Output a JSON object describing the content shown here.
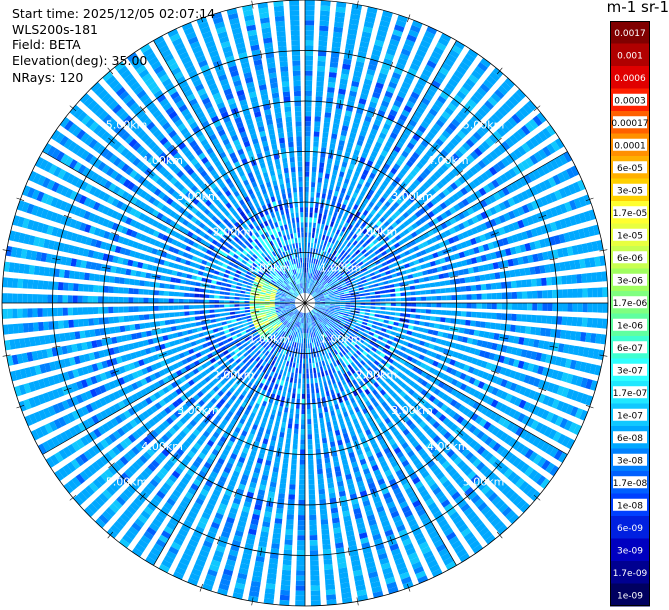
{
  "header": {
    "start_time": "Start time: 2025/12/05 02:07:14",
    "instrument": "WLS200s-181",
    "field": "Field: BETA",
    "elevation": "Elevation(deg): 35.00",
    "nrays": "NRays: 120"
  },
  "colorbar": {
    "title": "m-1 sr-1",
    "ticks": [
      "0.0017",
      "0.001",
      "0.0006",
      "0.0003",
      "0.00017",
      "0.0001",
      "6e-05",
      "3e-05",
      "1.7e-05",
      "1e-05",
      "6e-06",
      "3e-06",
      "1.7e-06",
      "1e-06",
      "6e-07",
      "3e-07",
      "1.7e-07",
      "1e-07",
      "6e-08",
      "3e-08",
      "1.7e-08",
      "1e-08",
      "6e-09",
      "3e-09",
      "1.7e-09",
      "1e-09"
    ],
    "colors": [
      "#800000",
      "#b00000",
      "#e00000",
      "#ff2000",
      "#ff6000",
      "#ff9000",
      "#ffb000",
      "#ffd000",
      "#ffff30",
      "#e8ff40",
      "#c8ff50",
      "#a0ff60",
      "#80ff80",
      "#60ffa0",
      "#40ffd0",
      "#30ffff",
      "#20e8ff",
      "#10c8ff",
      "#00a8ff",
      "#0080ff",
      "#0060ff",
      "#0040ff",
      "#0020e0",
      "#0000c0",
      "#000090",
      "#000060"
    ],
    "light_text_indices": [
      0,
      1,
      2,
      22,
      23,
      24,
      25
    ]
  },
  "chart_data": {
    "type": "heatmap",
    "projection": "polar-ppi",
    "field": "BETA",
    "units": "m-1 sr-1",
    "nrays": 120,
    "elevation_deg": 35.0,
    "range_rings_km": [
      1,
      2,
      3,
      4,
      5,
      6
    ],
    "ring_labels": [
      "1.00km",
      "2.00km",
      "3.00km",
      "4.00km",
      "5.00km"
    ],
    "max_range_km": 6.0,
    "azimuth_gridlines_deg": [
      0,
      30,
      60,
      90,
      120,
      150,
      180,
      210,
      240,
      270,
      300,
      330
    ],
    "dominant_value": "6e-08",
    "near_field_high_value": "1.7e-05",
    "grid": true
  }
}
